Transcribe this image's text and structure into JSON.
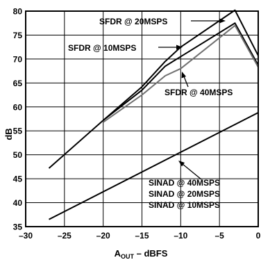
{
  "chart_data": {
    "type": "line",
    "title": "",
    "xlabel": {
      "main": "A",
      "sub": "OUT",
      "rest": " – dBFS"
    },
    "ylabel": "dB",
    "xlim": [
      -30,
      0
    ],
    "ylim": [
      35,
      80
    ],
    "x_ticks": [
      -30,
      -25,
      -20,
      -15,
      -10,
      -5,
      0
    ],
    "x_tick_labels": [
      "–30",
      "–25",
      "–20",
      "–15",
      "–10",
      "–5",
      "0"
    ],
    "y_ticks": [
      35,
      40,
      45,
      50,
      55,
      60,
      65,
      70,
      75,
      80
    ],
    "y_tick_labels": [
      "35",
      "40",
      "45",
      "50",
      "55",
      "60",
      "65",
      "70",
      "75",
      "80"
    ],
    "grid": true,
    "series": [
      {
        "name": "SFDR @ 20MSPS",
        "color": "#000000",
        "x": [
          -27,
          -20,
          -15,
          -12,
          -10,
          -3,
          0
        ],
        "y": [
          47.2,
          57.2,
          64.2,
          69.5,
          72.5,
          80.2,
          70.7
        ]
      },
      {
        "name": "SFDR @ 10MSPS",
        "color": "#000000",
        "x": [
          -20,
          -15,
          -12,
          -10,
          -3,
          0
        ],
        "y": [
          57.2,
          63.5,
          68.5,
          70.5,
          77.5,
          68.7
        ]
      },
      {
        "name": "SFDR @ 40MSPS",
        "color": "#707070",
        "x": [
          -20,
          -15,
          -12,
          -10,
          -3,
          0
        ],
        "y": [
          56.8,
          62.5,
          66.5,
          68.0,
          77.0,
          68.3
        ]
      },
      {
        "name": "SINAD @ 40MSPS / 20MSPS / 10MSPS",
        "color": "#000000",
        "x": [
          -27,
          0
        ],
        "y": [
          36.5,
          58.8
        ]
      }
    ],
    "annotations": [
      {
        "text": "SFDR @ 20MSPS"
      },
      {
        "text": "SFDR @ 10MSPS"
      },
      {
        "text": "SFDR @ 40MSPS"
      },
      {
        "text": "SINAD @ 40MSPS"
      },
      {
        "text": "SINAD @ 20MSPS"
      },
      {
        "text": "SINAD @ 10MSPS"
      }
    ]
  }
}
